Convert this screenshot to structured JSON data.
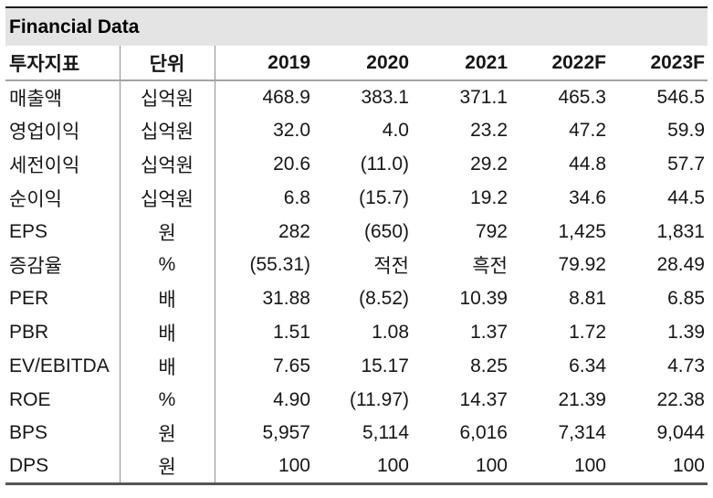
{
  "title": "Financial Data",
  "colors": {
    "title_bar_bg": "#e4e4e4",
    "top_border": "#1d1d1d",
    "bottom_border": "#555555",
    "header_underline": "#a3a3a3",
    "column_divider": "#909090",
    "text": "#161616"
  },
  "table": {
    "columns": [
      "투자지표",
      "단위",
      "2019",
      "2020",
      "2021",
      "2022F",
      "2023F"
    ],
    "rows": [
      {
        "label": "매출액",
        "unit": "십억원",
        "values": [
          "468.9",
          "383.1",
          "371.1",
          "465.3",
          "546.5"
        ]
      },
      {
        "label": "영업이익",
        "unit": "십억원",
        "values": [
          "32.0",
          "4.0",
          "23.2",
          "47.2",
          "59.9"
        ]
      },
      {
        "label": "세전이익",
        "unit": "십억원",
        "values": [
          "20.6",
          "(11.0)",
          "29.2",
          "44.8",
          "57.7"
        ]
      },
      {
        "label": "순이익",
        "unit": "십억원",
        "values": [
          "6.8",
          "(15.7)",
          "19.2",
          "34.6",
          "44.5"
        ]
      },
      {
        "label": "EPS",
        "unit": "원",
        "values": [
          "282",
          "(650)",
          "792",
          "1,425",
          "1,831"
        ]
      },
      {
        "label": "증감율",
        "unit": "%",
        "values": [
          "(55.31)",
          "적전",
          "흑전",
          "79.92",
          "28.49"
        ]
      },
      {
        "label": "PER",
        "unit": "배",
        "values": [
          "31.88",
          "(8.52)",
          "10.39",
          "8.81",
          "6.85"
        ]
      },
      {
        "label": "PBR",
        "unit": "배",
        "values": [
          "1.51",
          "1.08",
          "1.37",
          "1.72",
          "1.39"
        ]
      },
      {
        "label": "EV/EBITDA",
        "unit": "배",
        "values": [
          "7.65",
          "15.17",
          "8.25",
          "6.34",
          "4.73"
        ]
      },
      {
        "label": "ROE",
        "unit": "%",
        "values": [
          "4.90",
          "(11.97)",
          "14.37",
          "21.39",
          "22.38"
        ]
      },
      {
        "label": "BPS",
        "unit": "원",
        "values": [
          "5,957",
          "5,114",
          "6,016",
          "7,314",
          "9,044"
        ]
      },
      {
        "label": "DPS",
        "unit": "원",
        "values": [
          "100",
          "100",
          "100",
          "100",
          "100"
        ]
      }
    ]
  }
}
